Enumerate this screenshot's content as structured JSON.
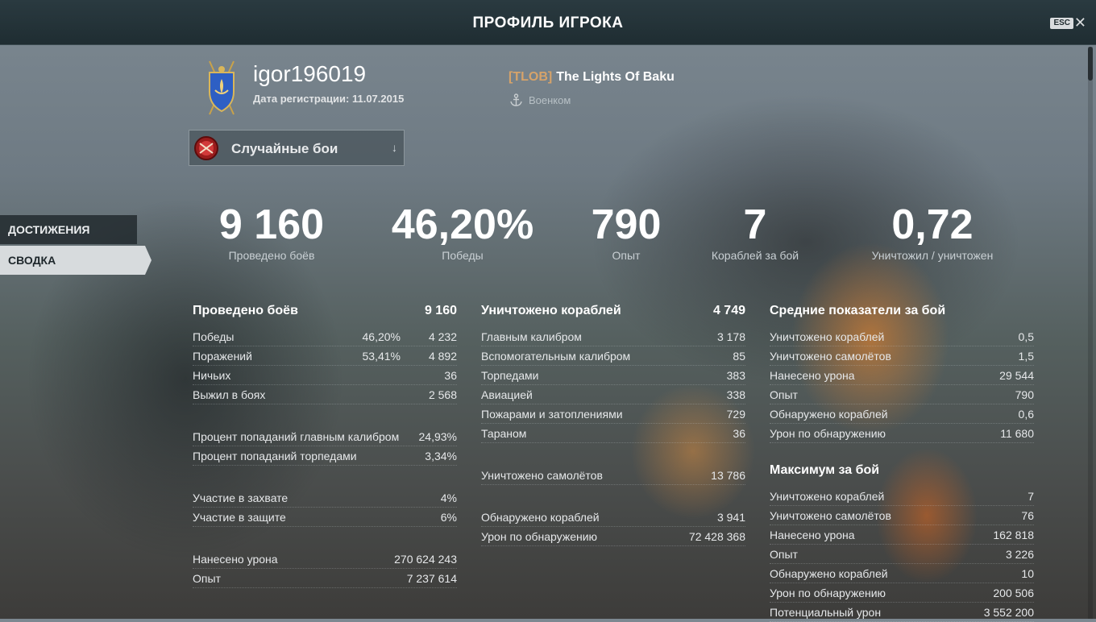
{
  "titlebar": {
    "title": "ПРОФИЛЬ ИГРОКА",
    "esc_label": "ESC",
    "close_glyph": "✕"
  },
  "player": {
    "username": "igor196019",
    "registration": "Дата регистрации: 11.07.2015"
  },
  "clan": {
    "tag": "[TLOB]",
    "name": "The Lights Of Baku",
    "role": "Военком"
  },
  "mode": {
    "label": "Случайные бои",
    "arrow": "↓"
  },
  "sidenav": {
    "achievements": "ДОСТИЖЕНИЯ",
    "summary": "СВОДКА"
  },
  "summary": [
    {
      "value": "9 160",
      "label": "Проведено боёв"
    },
    {
      "value": "46,20%",
      "label": "Победы"
    },
    {
      "value": "790",
      "label": "Опыт"
    },
    {
      "value": "7",
      "label": "Кораблей за бой"
    },
    {
      "value": "0,72",
      "label": "Уничтожил / уничтожен"
    }
  ],
  "col1": {
    "header": {
      "label": "Проведено боёв",
      "value": "9 160"
    },
    "rows": [
      {
        "label": "Победы",
        "pct": "46,20%",
        "value": "4 232"
      },
      {
        "label": "Поражений",
        "pct": "53,41%",
        "value": "4 892"
      },
      {
        "label": "Ничьих",
        "pct": "",
        "value": "36"
      },
      {
        "label": "Выжил в боях",
        "pct": "",
        "value": "2 568"
      }
    ],
    "accuracy": [
      {
        "label": "Процент попаданий главным калибром",
        "value": "24,93%"
      },
      {
        "label": "Процент попаданий торпедами",
        "value": "3,34%"
      }
    ],
    "base": [
      {
        "label": "Участие в захвате",
        "value": "4%"
      },
      {
        "label": "Участие в защите",
        "value": "6%"
      }
    ],
    "totals": [
      {
        "label": "Нанесено урона",
        "value": "270 624 243"
      },
      {
        "label": "Опыт",
        "value": "7 237 614"
      }
    ]
  },
  "col2": {
    "header": {
      "label": "Уничтожено кораблей",
      "value": "4 749"
    },
    "rows": [
      {
        "label": "Главным калибром",
        "value": "3 178"
      },
      {
        "label": "Вспомогательным калибром",
        "value": "85"
      },
      {
        "label": "Торпедами",
        "value": "383"
      },
      {
        "label": "Авиацией",
        "value": "338"
      },
      {
        "label": "Пожарами и затоплениями",
        "value": "729"
      },
      {
        "label": "Тараном",
        "value": "36"
      }
    ],
    "planes": {
      "label": "Уничтожено самолётов",
      "value": "13 786"
    },
    "spotting": [
      {
        "label": "Обнаружено кораблей",
        "value": "3 941"
      },
      {
        "label": "Урон по обнаружению",
        "value": "72 428 368"
      }
    ]
  },
  "col3": {
    "avg_header": "Средние показатели за бой",
    "avg": [
      {
        "label": "Уничтожено кораблей",
        "value": "0,5"
      },
      {
        "label": "Уничтожено самолётов",
        "value": "1,5"
      },
      {
        "label": "Нанесено урона",
        "value": "29 544"
      },
      {
        "label": "Опыт",
        "value": "790"
      },
      {
        "label": "Обнаружено кораблей",
        "value": "0,6"
      },
      {
        "label": "Урон по обнаружению",
        "value": "11 680"
      }
    ],
    "max_header": "Максимум за бой",
    "max": [
      {
        "label": "Уничтожено кораблей",
        "value": "7"
      },
      {
        "label": "Уничтожено самолётов",
        "value": "76"
      },
      {
        "label": "Нанесено урона",
        "value": "162 818"
      },
      {
        "label": "Опыт",
        "value": "3 226"
      },
      {
        "label": "Обнаружено кораблей",
        "value": "10"
      },
      {
        "label": "Урон по обнаружению",
        "value": "200 506"
      },
      {
        "label": "Потенциальный урон",
        "value": "3 552 200"
      }
    ]
  }
}
